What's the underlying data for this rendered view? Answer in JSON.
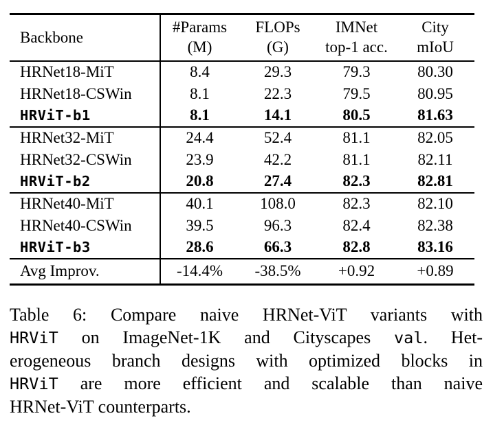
{
  "colors": {
    "text": "#000000",
    "background": "#ffffff",
    "rule": "#000000"
  },
  "table": {
    "header": {
      "backbone": "Backbone",
      "columns": [
        {
          "line1": "#Params",
          "line2": "(M)"
        },
        {
          "line1": "FLOPs",
          "line2": "(G)"
        },
        {
          "line1": "IMNet",
          "line2": "top-1 acc."
        },
        {
          "line1": "City",
          "line2": "mIoU"
        }
      ]
    },
    "groups": [
      {
        "rows": [
          {
            "backbone": "HRNet18-MiT",
            "values": [
              "8.4",
              "29.3",
              "79.3",
              "80.30"
            ],
            "bold": false
          },
          {
            "backbone": "HRNet18-CSWin",
            "values": [
              "8.1",
              "22.3",
              "79.5",
              "80.95"
            ],
            "bold": false
          },
          {
            "backbone": "HRViT-b1",
            "values": [
              "8.1",
              "14.1",
              "80.5",
              "81.63"
            ],
            "bold": true
          }
        ]
      },
      {
        "rows": [
          {
            "backbone": "HRNet32-MiT",
            "values": [
              "24.4",
              "52.4",
              "81.1",
              "82.05"
            ],
            "bold": false
          },
          {
            "backbone": "HRNet32-CSWin",
            "values": [
              "23.9",
              "42.2",
              "81.1",
              "82.11"
            ],
            "bold": false
          },
          {
            "backbone": "HRViT-b2",
            "values": [
              "20.8",
              "27.4",
              "82.3",
              "82.81"
            ],
            "bold": true
          }
        ]
      },
      {
        "rows": [
          {
            "backbone": "HRNet40-MiT",
            "values": [
              "40.1",
              "108.0",
              "82.3",
              "82.10"
            ],
            "bold": false
          },
          {
            "backbone": "HRNet40-CSWin",
            "values": [
              "39.5",
              "96.3",
              "82.4",
              "82.38"
            ],
            "bold": false
          },
          {
            "backbone": "HRViT-b3",
            "values": [
              "28.6",
              "66.3",
              "82.8",
              "83.16"
            ],
            "bold": true
          }
        ]
      }
    ],
    "footer": {
      "backbone": "Avg Improv.",
      "values": [
        "-14.4%",
        "-38.5%",
        "+0.92",
        "+0.89"
      ]
    }
  },
  "caption": {
    "lines": [
      {
        "last": false,
        "segments": [
          {
            "text": "Table 6:  Compare naive HRNet-ViT variants with",
            "mono": false
          }
        ]
      },
      {
        "last": false,
        "segments": [
          {
            "text": "HRViT",
            "mono": true
          },
          {
            "text": " on ImageNet-1K and Cityscapes ",
            "mono": false
          },
          {
            "text": "val",
            "mono": true
          },
          {
            "text": ".  Het-",
            "mono": false
          }
        ]
      },
      {
        "last": false,
        "segments": [
          {
            "text": "erogeneous branch designs with optimized blocks in",
            "mono": false
          }
        ]
      },
      {
        "last": false,
        "segments": [
          {
            "text": "HRViT",
            "mono": true
          },
          {
            "text": " are more efficient and scalable than naive",
            "mono": false
          }
        ]
      },
      {
        "last": true,
        "segments": [
          {
            "text": "HRNet-ViT counterparts.",
            "mono": false
          }
        ]
      }
    ]
  }
}
